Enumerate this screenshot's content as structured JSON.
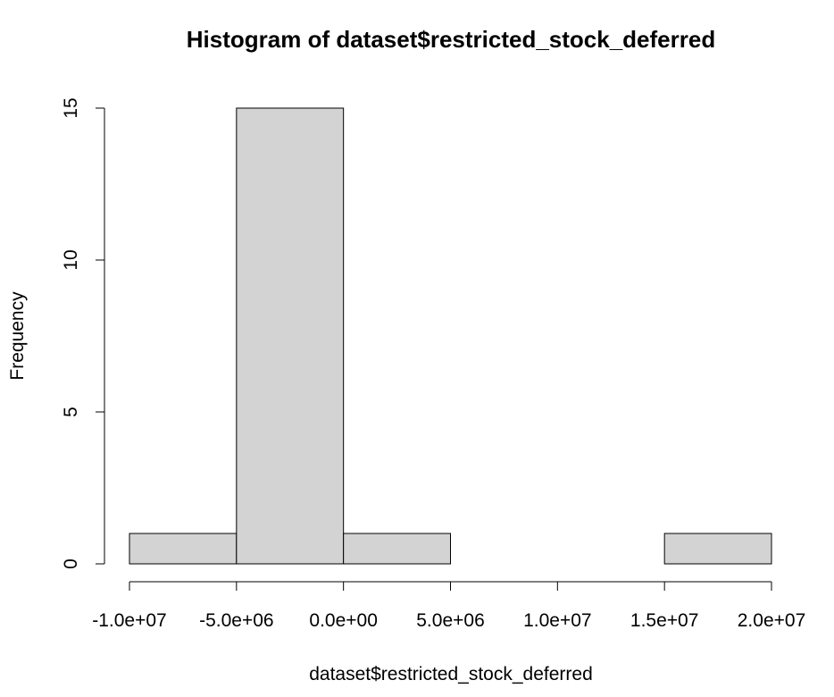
{
  "chart_data": {
    "type": "bar",
    "subtype": "histogram",
    "title": "Histogram of dataset$restricted_stock_deferred",
    "xlabel": "dataset$restricted_stock_deferred",
    "ylabel": "Frequency",
    "bins": [
      {
        "x0": -10000000,
        "x1": -5000000,
        "count": 1
      },
      {
        "x0": -5000000,
        "x1": 0,
        "count": 15
      },
      {
        "x0": 0,
        "x1": 5000000,
        "count": 1
      },
      {
        "x0": 5000000,
        "x1": 10000000,
        "count": 0
      },
      {
        "x0": 10000000,
        "x1": 15000000,
        "count": 0
      },
      {
        "x0": 15000000,
        "x1": 20000000,
        "count": 1
      }
    ],
    "x_ticks": [
      {
        "value": -10000000,
        "label": "-1.0e+07"
      },
      {
        "value": -5000000,
        "label": "-5.0e+06"
      },
      {
        "value": 0,
        "label": "0.0e+00"
      },
      {
        "value": 5000000,
        "label": "5.0e+06"
      },
      {
        "value": 10000000,
        "label": "1.0e+07"
      },
      {
        "value": 15000000,
        "label": "1.5e+07"
      },
      {
        "value": 20000000,
        "label": "2.0e+07"
      }
    ],
    "y_ticks": [
      {
        "value": 0,
        "label": "0"
      },
      {
        "value": 5,
        "label": "5"
      },
      {
        "value": 10,
        "label": "10"
      },
      {
        "value": 15,
        "label": "15"
      }
    ],
    "xlim": [
      -10000000,
      20000000
    ],
    "ylim": [
      0,
      15
    ],
    "grid": false,
    "bar_color": "#d3d3d3",
    "border_color": "#000000"
  }
}
